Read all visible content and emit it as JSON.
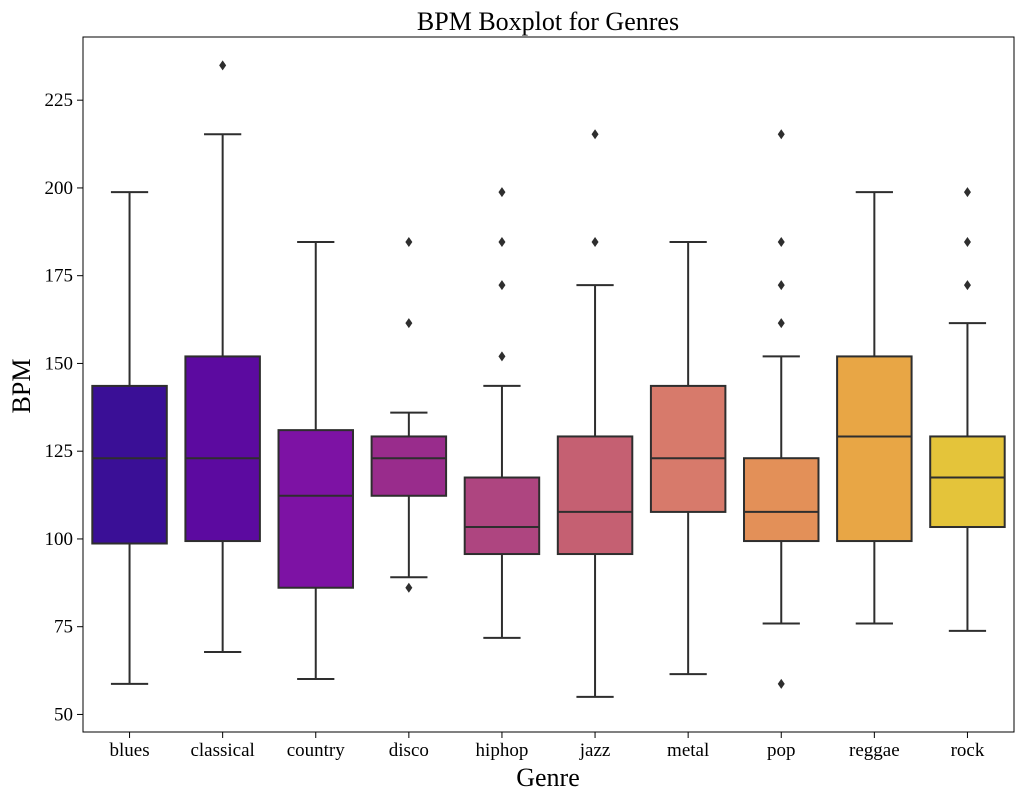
{
  "chart_data": {
    "type": "boxplot",
    "title": "BPM Boxplot for Genres",
    "xlabel": "Genre",
    "ylabel": "BPM",
    "ylim": [
      45,
      243
    ],
    "yticks": [
      50,
      75,
      100,
      125,
      150,
      175,
      200,
      225
    ],
    "grid": false,
    "categories": [
      "blues",
      "classical",
      "country",
      "disco",
      "hiphop",
      "jazz",
      "metal",
      "pop",
      "reggae",
      "rock"
    ],
    "series": [
      {
        "category": "blues",
        "color": "#3a0f96",
        "whisker_low": 58.7,
        "q1": 98.7,
        "median": 123.0,
        "q3": 143.6,
        "whisker_high": 198.8,
        "outliers": []
      },
      {
        "category": "classical",
        "color": "#5c0aa0",
        "whisker_low": 67.8,
        "q1": 99.4,
        "median": 123.0,
        "q3": 152.0,
        "whisker_high": 215.3,
        "outliers": [
          234.9
        ]
      },
      {
        "category": "country",
        "color": "#7d12a4",
        "whisker_low": 60.1,
        "q1": 86.1,
        "median": 112.3,
        "q3": 131.0,
        "whisker_high": 184.6,
        "outliers": []
      },
      {
        "category": "disco",
        "color": "#992c8c",
        "whisker_low": 89.1,
        "q1": 112.3,
        "median": 123.0,
        "q3": 129.2,
        "whisker_high": 136.0,
        "outliers": [
          86.1,
          161.5,
          184.6
        ]
      },
      {
        "category": "hiphop",
        "color": "#ae4580",
        "whisker_low": 71.8,
        "q1": 95.7,
        "median": 103.4,
        "q3": 117.5,
        "whisker_high": 143.6,
        "outliers": [
          152.0,
          172.3,
          184.6,
          198.8
        ]
      },
      {
        "category": "jazz",
        "color": "#c56072",
        "whisker_low": 55.0,
        "q1": 95.7,
        "median": 107.7,
        "q3": 129.2,
        "whisker_high": 172.3,
        "outliers": [
          184.6,
          215.3
        ]
      },
      {
        "category": "metal",
        "color": "#d77a6b",
        "whisker_low": 61.5,
        "q1": 107.7,
        "median": 123.0,
        "q3": 143.6,
        "whisker_high": 184.6,
        "outliers": []
      },
      {
        "category": "pop",
        "color": "#e39058",
        "whisker_low": 75.9,
        "q1": 99.4,
        "median": 107.7,
        "q3": 123.0,
        "whisker_high": 152.0,
        "outliers": [
          58.7,
          161.5,
          172.3,
          184.6,
          215.3
        ]
      },
      {
        "category": "reggae",
        "color": "#e8a645",
        "whisker_low": 75.9,
        "q1": 99.4,
        "median": 129.2,
        "q3": 152.0,
        "whisker_high": 198.8,
        "outliers": []
      },
      {
        "category": "rock",
        "color": "#e4c43a",
        "whisker_low": 73.8,
        "q1": 103.4,
        "median": 117.5,
        "q3": 129.2,
        "whisker_high": 161.5,
        "outliers": [
          172.3,
          184.6,
          198.8
        ]
      }
    ]
  }
}
